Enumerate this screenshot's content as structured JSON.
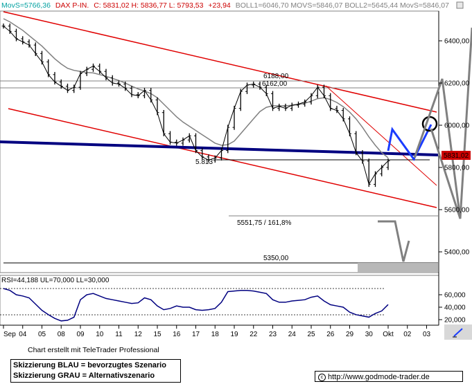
{
  "header": {
    "movs1": "MovS=5766,36",
    "instrument": "DAX P-IN.",
    "ohlc": "C: 5831,02 H: 5836,77 L: 5793,53",
    "change": "+23,94",
    "indicators": "BOLL1=6046,70 MOVS=5846,07 BOLL2=5645,44 MovS=5846,07"
  },
  "rsi_header": "RSI=44,188 UL=70,000 LL=30,000",
  "credit": "Chart erstellt mit TeleTrader Professional",
  "legend": {
    "line1": "Skizzierung BLAU = bevorzugtes Szenario",
    "line2": "Skizzierung GRAU = Alternativszenario"
  },
  "url": "http://www.godmode-trader.de",
  "annotations": {
    "support_label": "5.813",
    "fib_label": "5551,75 / 161,8%",
    "target_label": "5350,00",
    "resist1_label": "6188,00",
    "resist2_label": "6162,00",
    "last_price_tag": "5831,02"
  },
  "colors": {
    "channel": "#e00000",
    "trend": "#000080",
    "scenario_blue": "#1a3cff",
    "scenario_gray": "#888888",
    "price": "#000000",
    "movs": "#808080",
    "rsi": "#000080",
    "last_tag": "#cc0000",
    "header_cyan": "#00a0a0",
    "header_red": "#cc0000",
    "header_gray": "#808080"
  },
  "chart_data": [
    {
      "type": "line",
      "title": "DAX P-IN.",
      "ylim": [
        5300,
        6520
      ],
      "yticks": [
        "5400,00",
        "5600,00",
        "5800,00",
        "6000,00",
        "6200,00",
        "6400,00"
      ],
      "ytick_values": [
        5400,
        5600,
        5800,
        6000,
        6200,
        6400
      ],
      "xticks": [
        "Sep",
        "04",
        "05",
        "08",
        "09",
        "10",
        "11",
        "12",
        "15",
        "16",
        "17",
        "18",
        "19",
        "22",
        "23",
        "24",
        "25",
        "26",
        "29",
        "30",
        "Okt",
        "02",
        "03"
      ],
      "xtick_index": [
        0,
        3,
        6,
        9,
        12,
        15,
        18,
        21,
        24,
        27,
        30,
        33,
        36,
        39,
        42,
        45,
        48,
        51,
        54,
        57,
        60,
        63,
        66
      ],
      "series": [
        {
          "kind": "price",
          "values": [
            6470,
            6445,
            6410,
            6395,
            6380,
            6340,
            6300,
            6240,
            6205,
            6185,
            6165,
            6180,
            6245,
            6265,
            6280,
            6255,
            6225,
            6200,
            6195,
            6175,
            6145,
            6140,
            6165,
            6120,
            6060,
            5960,
            5920,
            5915,
            5930,
            5950,
            5880,
            5850,
            5835,
            5845,
            5880,
            5990,
            6080,
            6160,
            6190,
            6195,
            6180,
            6150,
            6080,
            6090,
            6080,
            6095,
            6100,
            6110,
            6140,
            6180,
            6140,
            6080,
            6070,
            6030,
            5960,
            5870,
            5830,
            5720,
            5770,
            5800,
            5831
          ]
        },
        {
          "kind": "movs",
          "values": [
            6505,
            6490,
            6470,
            6450,
            6425,
            6400,
            6375,
            6345,
            6315,
            6290,
            6270,
            6260,
            6255,
            6250,
            6248,
            6240,
            6232,
            6222,
            6212,
            6200,
            6185,
            6172,
            6162,
            6150,
            6130,
            6100,
            6070,
            6040,
            6015,
            5995,
            5975,
            5955,
            5935,
            5915,
            5905,
            5908,
            5925,
            5960,
            5995,
            6030,
            6065,
            6085,
            6092,
            6092,
            6092,
            6094,
            6098,
            6104,
            6114,
            6126,
            6130,
            6122,
            6108,
            6088,
            6062,
            6030,
            5990,
            5945,
            5905,
            5870,
            5846
          ]
        }
      ],
      "levels": [
        {
          "value": 6188,
          "label": "6188,00"
        },
        {
          "value": 6162,
          "label": "6162,00"
        },
        {
          "value": 5813,
          "label": "5.813"
        },
        {
          "value": 5551.75,
          "label": "5551,75 / 161,8%"
        },
        {
          "value": 5350,
          "label": "5350,00"
        }
      ],
      "last_price": 5831.02
    },
    {
      "type": "line",
      "title": "RSI",
      "ylim": [
        10000,
        75000
      ],
      "yticks": [
        "20,000",
        "40,000",
        "60,000"
      ],
      "ytick_values": [
        20000,
        40000,
        60000
      ],
      "upper_line": 70000,
      "lower_line": 30000,
      "values": [
        70000,
        67000,
        60000,
        58000,
        55000,
        45000,
        35000,
        28000,
        22000,
        18000,
        19000,
        24000,
        52000,
        60000,
        62000,
        58000,
        54000,
        52000,
        50000,
        48000,
        46000,
        47000,
        55000,
        52000,
        42000,
        36000,
        38000,
        42000,
        40000,
        40000,
        36000,
        35000,
        36000,
        38000,
        48000,
        65000,
        66000,
        67000,
        67000,
        66000,
        64000,
        62000,
        52000,
        48000,
        48000,
        50000,
        51000,
        52000,
        56000,
        58000,
        50000,
        44000,
        42000,
        40000,
        32000,
        28000,
        26000,
        24000,
        30000,
        34000,
        44188
      ]
    }
  ]
}
